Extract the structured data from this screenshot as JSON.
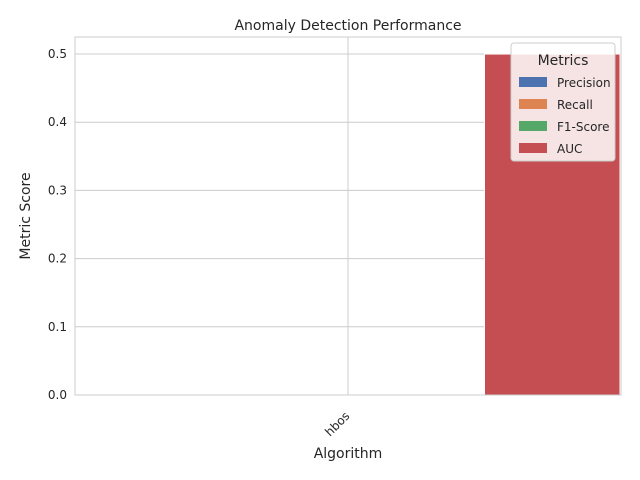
{
  "chart_data": {
    "type": "bar",
    "title": "Anomaly Detection Performance",
    "xlabel": "Algorithm",
    "ylabel": "Metric Score",
    "categories": [
      "hbos"
    ],
    "series": [
      {
        "name": "Precision",
        "values": [
          0.0
        ],
        "color": "#4c72b0"
      },
      {
        "name": "Recall",
        "values": [
          0.0
        ],
        "color": "#dd8452"
      },
      {
        "name": "F1-Score",
        "values": [
          0.0
        ],
        "color": "#55a868"
      },
      {
        "name": "AUC",
        "values": [
          0.5
        ],
        "color": "#c44e52"
      }
    ],
    "ylim": [
      0,
      0.525
    ],
    "yticks": [
      "0.0",
      "0.1",
      "0.2",
      "0.3",
      "0.4",
      "0.5"
    ],
    "grid": true,
    "legend": {
      "title": "Metrics",
      "placement": "top-right"
    }
  }
}
